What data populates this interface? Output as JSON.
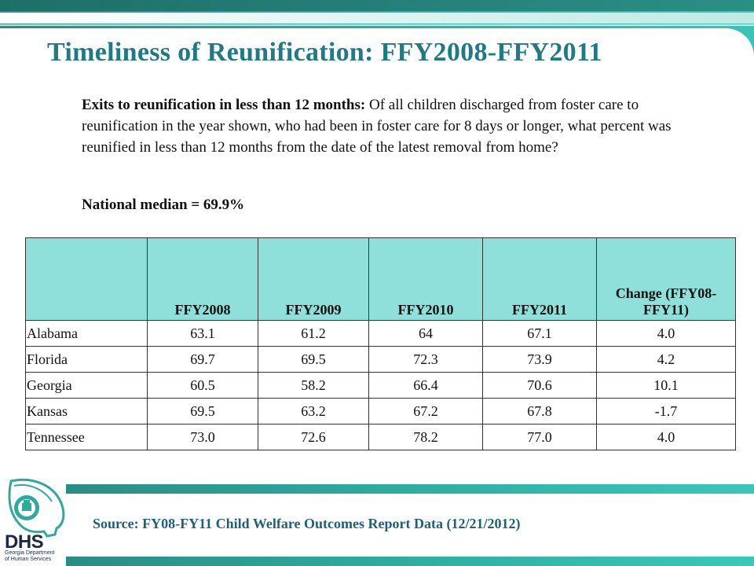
{
  "title": "Timeliness of Reunification: FFY2008-FFY2011",
  "description": {
    "lead": "Exits to reunification in less than 12 months:",
    "body": " Of all children discharged from foster care to reunification in the year shown, who had been in foster care for 8 days or longer, what percent was reunified in less than 12 months from the date of the latest removal from home?"
  },
  "median": "National median = 69.9%",
  "table": {
    "headers": [
      "",
      "FFY2008",
      "FFY2009",
      "FFY2010",
      "FFY2011",
      "Change (FFY08-FFY11)"
    ],
    "rows": [
      [
        "Alabama",
        "63.1",
        "61.2",
        "64",
        "67.1",
        "4.0"
      ],
      [
        "Florida",
        "69.7",
        "69.5",
        "72.3",
        "73.9",
        "4.2"
      ],
      [
        "Georgia",
        "60.5",
        "58.2",
        "66.4",
        "70.6",
        "10.1"
      ],
      [
        "Kansas",
        "69.5",
        "63.2",
        "67.2",
        "67.8",
        "-1.7"
      ],
      [
        "Tennessee",
        "73.0",
        "72.6",
        "78.2",
        "77.0",
        "4.0"
      ]
    ]
  },
  "source": "Source:  FY08-FY11 Child Welfare Outcomes Report Data (12/21/2012)",
  "logo": {
    "text": "DHS",
    "subtitle": "Georgia Department of Human Services"
  },
  "colors": {
    "accent": "#2fb0a5",
    "title": "#1f7a84",
    "header_cell": "#8fe0da",
    "source": "#1f5f7a"
  }
}
